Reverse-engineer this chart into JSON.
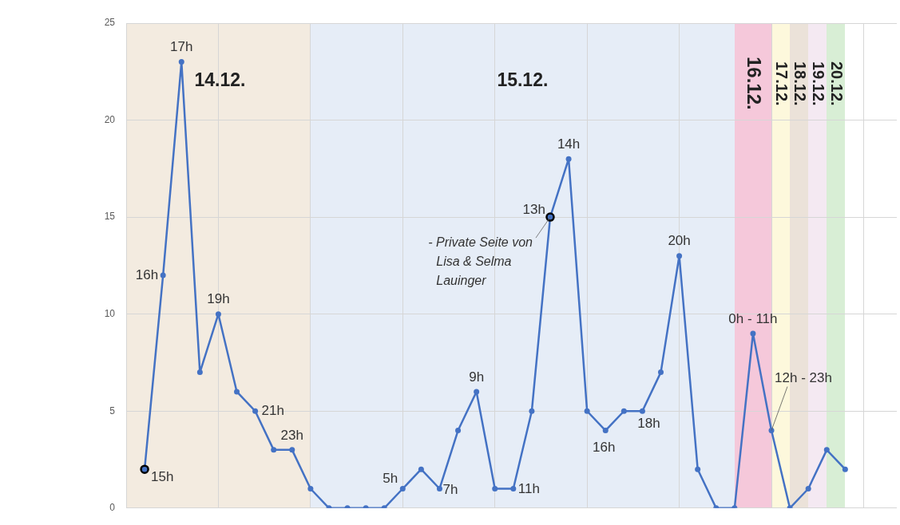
{
  "chart_data": {
    "type": "line",
    "tick_labels": "y",
    "grid": true,
    "legend": false,
    "marker": "circle",
    "line_style": "solid",
    "categories": [
      null,
      null,
      null,
      null,
      null,
      null,
      null,
      null,
      null,
      null,
      null,
      null,
      null,
      null,
      null,
      null,
      null,
      null,
      null,
      null,
      null,
      null,
      null,
      null,
      null,
      null,
      null,
      null,
      null,
      null,
      null,
      null,
      null,
      null,
      null,
      null,
      null,
      null,
      null,
      null,
      null
    ],
    "ylim": [
      0,
      25
    ],
    "yticks": [
      0,
      5,
      10,
      15,
      20,
      25
    ],
    "series": [
      {
        "color": "#4472c4",
        "values": [
          null,
          2,
          12,
          23,
          7,
          10,
          6,
          5,
          3,
          3,
          1,
          0,
          0,
          0,
          0,
          1,
          2,
          1,
          4,
          6,
          1,
          1,
          5,
          15,
          18,
          5,
          4,
          5,
          5,
          7,
          13,
          2,
          0,
          0,
          9,
          4,
          0,
          1,
          3,
          2,
          null
        ],
        "colors": [
          "#4472c4",
          "#000000",
          "#4472c4",
          "#4472c4",
          "#4472c4",
          "#4472c4",
          "#4472c4",
          "#4472c4",
          "#4472c4",
          "#4472c4",
          "#4472c4",
          "#4472c4",
          "#4472c4",
          "#4472c4",
          "#4472c4",
          "#4472c4",
          "#4472c4",
          "#4472c4",
          "#4472c4",
          "#4472c4",
          "#4472c4",
          "#4472c4",
          "#4472c4",
          "#000000",
          "#4472c4",
          "#4472c4",
          "#4472c4",
          "#4472c4",
          "#4472c4",
          "#4472c4",
          "#4472c4",
          "#4472c4",
          "#4472c4",
          "#4472c4",
          "#4472c4",
          "#4472c4",
          "#4472c4",
          "#4472c4",
          "#4472c4",
          "#4472c4",
          "#4472c4"
        ]
      }
    ],
    "annotations": [
      "15h",
      "16h",
      "17h",
      "19h",
      "21h",
      "23h",
      "5h",
      "7h",
      "9h",
      "11h",
      "13h",
      "14h",
      "16h",
      "18h",
      "20h",
      "0h - 11h",
      "12h - 23h",
      "- Private Seite von Lisa & Selma Lauinger",
      "14.12.",
      "15.12.",
      "16.12.",
      "17.12.",
      "18.12.",
      "19.12.",
      "20.12."
    ]
  }
}
